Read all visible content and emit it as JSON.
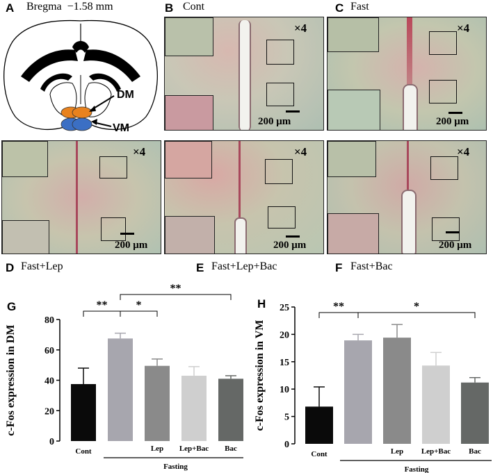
{
  "panels": {
    "A": {
      "letter": "A",
      "caption": "Bregma  −1.58 mm",
      "dm_label": "DM",
      "vm_label": "VM"
    },
    "B": {
      "letter": "B",
      "caption": "Cont",
      "mag": "×4",
      "scale": "200 μm"
    },
    "C": {
      "letter": "C",
      "caption": "Fast",
      "mag": "×4",
      "scale": "200 μm"
    },
    "D": {
      "letter": "D",
      "caption": "Fast+Lep",
      "mag": "×4",
      "scale": "200 μm"
    },
    "E": {
      "letter": "E",
      "caption": "Fast+Lep+Bac",
      "mag": "×4",
      "scale": "200 μm"
    },
    "F": {
      "letter": "F",
      "caption": "Fast+Bac",
      "mag": "×4",
      "scale": "200 μm"
    },
    "G": {
      "letter": "G"
    },
    "H": {
      "letter": "H"
    }
  },
  "colors": {
    "dm_region": "#e8821e",
    "vm_region": "#3b6fc4",
    "tissue_bg": "#c8c4a8",
    "stain": "#b0506a"
  },
  "chart_data": [
    {
      "type": "bar",
      "ylabel": "c-Fos expression in DM",
      "categories": [
        "Cont",
        "",
        "Lep",
        "Lep+Bac",
        "Bac"
      ],
      "group_label": "Fasting",
      "values": [
        37.5,
        67.5,
        49.5,
        43,
        41
      ],
      "errors": [
        10.5,
        3.5,
        4.5,
        6,
        2
      ],
      "colors": [
        "#0a0a0a",
        "#a7a6ae",
        "#8a8a8a",
        "#cfcfcf",
        "#656866"
      ],
      "ylim": [
        0,
        80
      ],
      "yticks": [
        0,
        20,
        40,
        60,
        80
      ],
      "significance": [
        {
          "from": 0,
          "to": 1,
          "label": "**",
          "level": 0
        },
        {
          "from": 1,
          "to": 2,
          "label": "*",
          "level": 0
        },
        {
          "from": 1,
          "to": 4,
          "label": "**",
          "level": 1
        }
      ]
    },
    {
      "type": "bar",
      "ylabel": "c-Fos expression in VM",
      "categories": [
        "Cont",
        "",
        "Lep",
        "Lep+Bac",
        "Bac"
      ],
      "group_label": "Fasting",
      "values": [
        6.8,
        18.9,
        19.4,
        14.3,
        11.2
      ],
      "errors": [
        3.6,
        1.1,
        2.4,
        2.4,
        0.9
      ],
      "colors": [
        "#0a0a0a",
        "#a7a6ae",
        "#8a8a8a",
        "#cfcfcf",
        "#656866"
      ],
      "ylim": [
        0,
        25
      ],
      "yticks": [
        0,
        5,
        10,
        15,
        20,
        25
      ],
      "significance": [
        {
          "from": 0,
          "to": 1,
          "label": "**",
          "level": 0
        },
        {
          "from": 1,
          "to": 4,
          "label": "*",
          "level": 0
        }
      ]
    }
  ]
}
